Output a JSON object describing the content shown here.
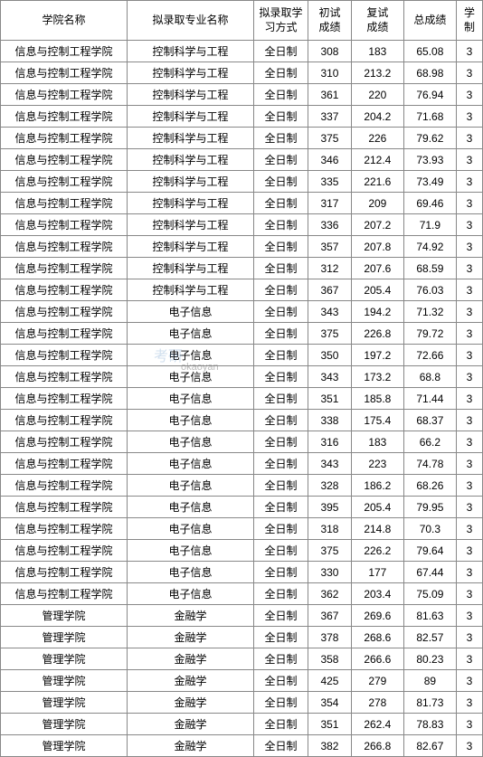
{
  "table": {
    "columns": [
      {
        "key": "school",
        "label": "学院名称",
        "width": 135,
        "class": "col-school"
      },
      {
        "key": "major",
        "label": "拟录取专业名称",
        "width": 135,
        "class": "col-major"
      },
      {
        "key": "mode",
        "label": "拟录取学\n习方式",
        "width": 58,
        "class": "col-mode"
      },
      {
        "key": "prelim",
        "label": "初试\n成绩",
        "width": 46,
        "class": "col-prelim"
      },
      {
        "key": "retest",
        "label": "复试\n成绩",
        "width": 56,
        "class": "col-retest"
      },
      {
        "key": "total",
        "label": "总成绩",
        "width": 56,
        "class": "col-total"
      },
      {
        "key": "years",
        "label": "学\n制",
        "width": 28,
        "class": "col-years"
      }
    ],
    "rows": [
      [
        "信息与控制工程学院",
        "控制科学与工程",
        "全日制",
        "308",
        "183",
        "65.08",
        "3"
      ],
      [
        "信息与控制工程学院",
        "控制科学与工程",
        "全日制",
        "310",
        "213.2",
        "68.98",
        "3"
      ],
      [
        "信息与控制工程学院",
        "控制科学与工程",
        "全日制",
        "361",
        "220",
        "76.94",
        "3"
      ],
      [
        "信息与控制工程学院",
        "控制科学与工程",
        "全日制",
        "337",
        "204.2",
        "71.68",
        "3"
      ],
      [
        "信息与控制工程学院",
        "控制科学与工程",
        "全日制",
        "375",
        "226",
        "79.62",
        "3"
      ],
      [
        "信息与控制工程学院",
        "控制科学与工程",
        "全日制",
        "346",
        "212.4",
        "73.93",
        "3"
      ],
      [
        "信息与控制工程学院",
        "控制科学与工程",
        "全日制",
        "335",
        "221.6",
        "73.49",
        "3"
      ],
      [
        "信息与控制工程学院",
        "控制科学与工程",
        "全日制",
        "317",
        "209",
        "69.46",
        "3"
      ],
      [
        "信息与控制工程学院",
        "控制科学与工程",
        "全日制",
        "336",
        "207.2",
        "71.9",
        "3"
      ],
      [
        "信息与控制工程学院",
        "控制科学与工程",
        "全日制",
        "357",
        "207.8",
        "74.92",
        "3"
      ],
      [
        "信息与控制工程学院",
        "控制科学与工程",
        "全日制",
        "312",
        "207.6",
        "68.59",
        "3"
      ],
      [
        "信息与控制工程学院",
        "控制科学与工程",
        "全日制",
        "367",
        "205.4",
        "76.03",
        "3"
      ],
      [
        "信息与控制工程学院",
        "电子信息",
        "全日制",
        "343",
        "194.2",
        "71.32",
        "3"
      ],
      [
        "信息与控制工程学院",
        "电子信息",
        "全日制",
        "375",
        "226.8",
        "79.72",
        "3"
      ],
      [
        "信息与控制工程学院",
        "电子信息",
        "全日制",
        "350",
        "197.2",
        "72.66",
        "3"
      ],
      [
        "信息与控制工程学院",
        "电子信息",
        "全日制",
        "343",
        "173.2",
        "68.8",
        "3"
      ],
      [
        "信息与控制工程学院",
        "电子信息",
        "全日制",
        "351",
        "185.8",
        "71.44",
        "3"
      ],
      [
        "信息与控制工程学院",
        "电子信息",
        "全日制",
        "338",
        "175.4",
        "68.37",
        "3"
      ],
      [
        "信息与控制工程学院",
        "电子信息",
        "全日制",
        "316",
        "183",
        "66.2",
        "3"
      ],
      [
        "信息与控制工程学院",
        "电子信息",
        "全日制",
        "343",
        "223",
        "74.78",
        "3"
      ],
      [
        "信息与控制工程学院",
        "电子信息",
        "全日制",
        "328",
        "186.2",
        "68.26",
        "3"
      ],
      [
        "信息与控制工程学院",
        "电子信息",
        "全日制",
        "395",
        "205.4",
        "79.95",
        "3"
      ],
      [
        "信息与控制工程学院",
        "电子信息",
        "全日制",
        "318",
        "214.8",
        "70.3",
        "3"
      ],
      [
        "信息与控制工程学院",
        "电子信息",
        "全日制",
        "375",
        "226.2",
        "79.64",
        "3"
      ],
      [
        "信息与控制工程学院",
        "电子信息",
        "全日制",
        "330",
        "177",
        "67.44",
        "3"
      ],
      [
        "信息与控制工程学院",
        "电子信息",
        "全日制",
        "362",
        "203.4",
        "75.09",
        "3"
      ],
      [
        "管理学院",
        "金融学",
        "全日制",
        "367",
        "269.6",
        "81.63",
        "3"
      ],
      [
        "管理学院",
        "金融学",
        "全日制",
        "378",
        "268.6",
        "82.57",
        "3"
      ],
      [
        "管理学院",
        "金融学",
        "全日制",
        "358",
        "266.6",
        "80.23",
        "3"
      ],
      [
        "管理学院",
        "金融学",
        "全日制",
        "425",
        "279",
        "89",
        "3"
      ],
      [
        "管理学院",
        "金融学",
        "全日制",
        "354",
        "278",
        "81.73",
        "3"
      ],
      [
        "管理学院",
        "金融学",
        "全日制",
        "351",
        "262.4",
        "78.83",
        "3"
      ],
      [
        "管理学院",
        "金融学",
        "全日制",
        "382",
        "266.8",
        "82.67",
        "3"
      ]
    ],
    "border_color": "#888888",
    "background_color": "#ffffff",
    "font_size": 12
  },
  "watermark": {
    "logo_text": "考研",
    "url_text": "okaoyan"
  }
}
